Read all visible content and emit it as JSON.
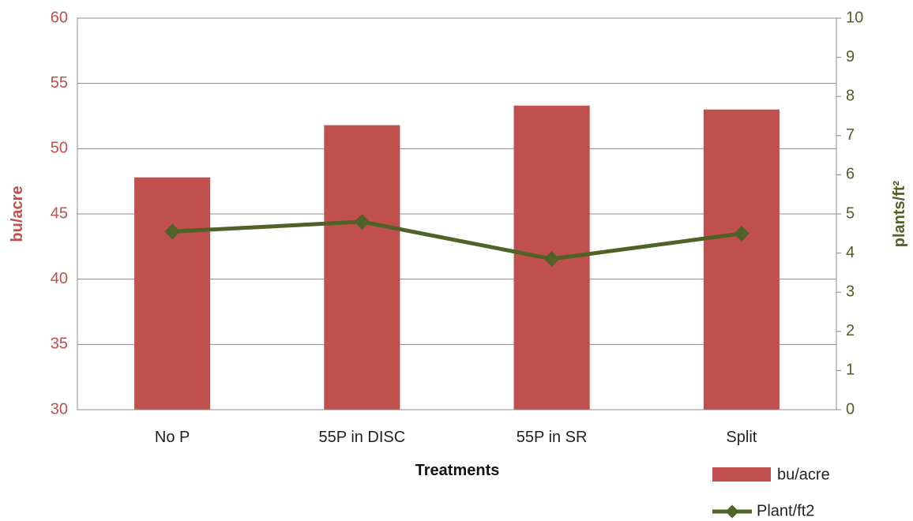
{
  "chart_data": {
    "type": "bar",
    "categories": [
      "No P",
      "55P in DISC",
      "55P in SR",
      "Split"
    ],
    "series": [
      {
        "name": "bu/acre",
        "type": "bar",
        "axis": "left",
        "values": [
          47.8,
          51.8,
          53.3,
          53.0
        ]
      },
      {
        "name": "Plant/ft2",
        "type": "line",
        "axis": "right",
        "values": [
          4.55,
          4.8,
          3.85,
          4.5
        ]
      }
    ],
    "xlabel": "Treatments",
    "ylabel": "bu/acre",
    "y2label": "plants/ft²",
    "ylim": [
      30,
      60
    ],
    "yticks": [
      30,
      35,
      40,
      45,
      50,
      55,
      60
    ],
    "y2lim": [
      0,
      10
    ],
    "y2ticks": [
      0,
      1,
      2,
      3,
      4,
      5,
      6,
      7,
      8,
      9,
      10
    ],
    "grid": true,
    "legend": "bottom-right",
    "colors": {
      "bars": "#c0504d",
      "line": "#4f6228",
      "left_axis": "#c0504d",
      "right_axis": "#4f6228",
      "grid": "#8c8c8c"
    }
  }
}
